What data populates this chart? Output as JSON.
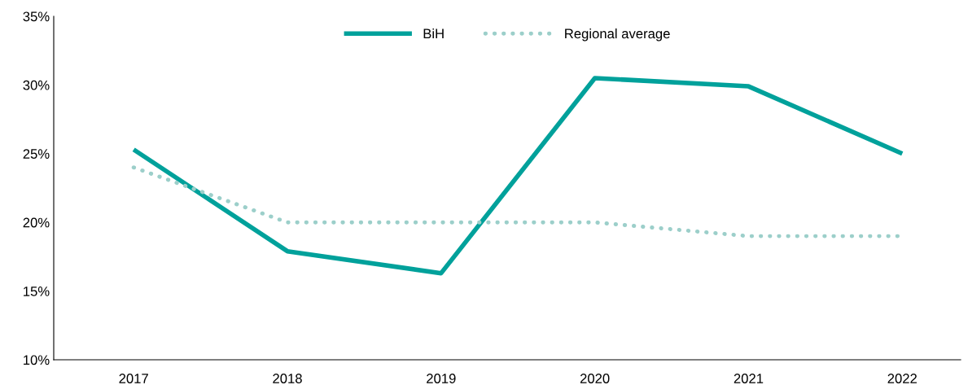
{
  "chart_data": {
    "type": "line",
    "categories": [
      "2017",
      "2018",
      "2019",
      "2020",
      "2021",
      "2022"
    ],
    "series": [
      {
        "name": "BiH",
        "color": "#00a19b",
        "line_style": "solid",
        "values": [
          25.3,
          17.9,
          16.3,
          30.5,
          29.9,
          25.0
        ]
      },
      {
        "name": "Regional average",
        "color": "#9ccfca",
        "line_style": "dotted",
        "values": [
          24,
          20,
          20,
          20,
          19,
          19
        ]
      }
    ],
    "ylim": [
      10,
      35
    ],
    "yticks": [
      {
        "value": 10,
        "label": "10%"
      },
      {
        "value": 15,
        "label": "15%"
      },
      {
        "value": 20,
        "label": "20%"
      },
      {
        "value": 25,
        "label": "25%"
      },
      {
        "value": 30,
        "label": "30%"
      },
      {
        "value": 35,
        "label": "35%"
      }
    ],
    "grid": false,
    "legend": "top",
    "marker": "none"
  }
}
